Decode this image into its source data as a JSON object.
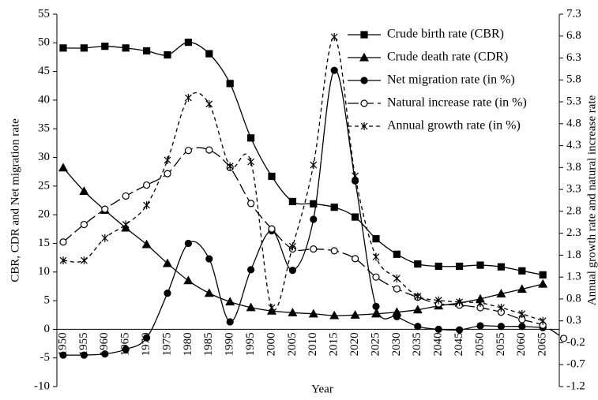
{
  "chart_data": {
    "type": "line",
    "x_label": "Year",
    "y_label": "CBR, CDR and Net migration rate",
    "y2_label": "Annual growth rate and natural increase rate",
    "categories": [
      "1950",
      "1955",
      "1960",
      "1965",
      "1970",
      "1975",
      "1980",
      "1985",
      "1990",
      "1995",
      "2000",
      "2005",
      "2010",
      "2015",
      "2020",
      "2025",
      "2030",
      "2035",
      "2040",
      "2045",
      "2050",
      "2055",
      "2060",
      "2065",
      null
    ],
    "ylim": [
      -10,
      55
    ],
    "yticks": [
      55,
      50,
      45,
      40,
      35,
      30,
      25,
      20,
      15,
      10,
      5,
      0,
      -5,
      -10
    ],
    "y2lim": [
      -1.2,
      7.3
    ],
    "y2ticks": [
      7.3,
      6.8,
      6.3,
      5.8,
      5.3,
      4.8,
      4.3,
      3.8,
      3.3,
      2.8,
      2.3,
      1.8,
      1.3,
      0.8,
      0.3,
      -0.2,
      -0.7,
      -1.2
    ],
    "series": [
      {
        "name": "Crude birth rate (CBR)",
        "color": "#000000",
        "marker": "square",
        "dash": "solid",
        "values": [
          49.1,
          49.1,
          49.4,
          49.1,
          48.6,
          47.9,
          50.1,
          48.1,
          42.9,
          33.4,
          26.7,
          22.3,
          21.9,
          21.3,
          19.6,
          15.8,
          13.1,
          11.4,
          11.0,
          11.0,
          11.2,
          10.9,
          10.2,
          9.5,
          null
        ]
      },
      {
        "name": "Crude death rate (CDR)",
        "color": "#000000",
        "marker": "triangle",
        "dash": "solid",
        "values": [
          28.2,
          24.1,
          20.8,
          17.7,
          14.8,
          11.5,
          8.5,
          6.3,
          4.8,
          3.8,
          3.2,
          2.9,
          2.7,
          2.4,
          2.5,
          2.7,
          3.0,
          3.4,
          4.1,
          4.6,
          5.3,
          6.2,
          7.0,
          7.9,
          null
        ]
      },
      {
        "name": "Net migration rate (in %)",
        "color": "#000000",
        "marker": "circle",
        "dash": "solid",
        "values": [
          -4.5,
          -4.5,
          -4.3,
          -3.5,
          -1.5,
          6.3,
          15.0,
          12.3,
          1.3,
          10.4,
          17.2,
          10.3,
          19.2,
          45.2,
          25.9,
          4.0,
          2.2,
          0.5,
          0.0,
          -0.1,
          0.6,
          0.5,
          0.5,
          0.3,
          null
        ]
      },
      {
        "name": "Natural increase rate (in %)",
        "color": "#000000",
        "marker": "hollow-circle",
        "dash": "long",
        "axis": "y2",
        "values": [
          2.1,
          2.5,
          2.85,
          3.15,
          3.4,
          3.66,
          4.19,
          4.2,
          3.8,
          2.98,
          2.4,
          1.94,
          1.94,
          1.9,
          1.72,
          1.3,
          1.03,
          0.84,
          0.69,
          0.66,
          0.6,
          0.5,
          0.33,
          0.2,
          -0.1
        ]
      },
      {
        "name": "Annual growth rate (in %)",
        "color": "#000000",
        "marker": "star",
        "dash": "short",
        "axis": "y2",
        "values": [
          1.68,
          1.68,
          2.19,
          2.5,
          2.94,
          3.97,
          5.39,
          5.25,
          3.83,
          3.93,
          0.6,
          2.0,
          3.86,
          6.78,
          3.61,
          1.76,
          1.27,
          0.86,
          0.77,
          0.73,
          0.71,
          0.6,
          0.46,
          0.3,
          null
        ]
      }
    ]
  }
}
